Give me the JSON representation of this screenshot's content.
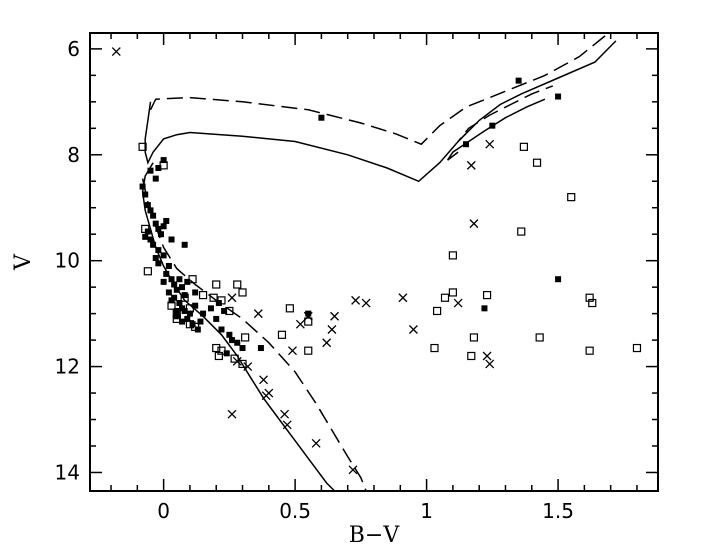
{
  "chart_data": {
    "type": "scatter",
    "title": "",
    "xlabel": "B−V",
    "ylabel": "V",
    "xlim": [
      -0.28,
      1.88
    ],
    "ylim": [
      14.35,
      5.7
    ],
    "y_inverted": true,
    "grid": false,
    "legend": "none",
    "x_ticks": [
      0,
      0.5,
      1,
      1.5
    ],
    "x_tick_labels": [
      "0",
      "0.5",
      "1",
      "1.5"
    ],
    "y_ticks": [
      6,
      8,
      10,
      12,
      14
    ],
    "y_tick_labels": [
      "6",
      "8",
      "10",
      "12",
      "14"
    ],
    "x_minor_step": 0.1,
    "y_minor_step": 0.5,
    "series": [
      {
        "marker": "filled-square",
        "points": [
          [
            -0.08,
            8.6
          ],
          [
            -0.07,
            8.75
          ],
          [
            -0.06,
            8.95
          ],
          [
            -0.05,
            9.05
          ],
          [
            -0.04,
            9.15
          ],
          [
            -0.03,
            9.3
          ],
          [
            -0.06,
            9.45
          ],
          [
            -0.05,
            9.6
          ],
          [
            -0.04,
            9.7
          ],
          [
            -0.07,
            9.55
          ],
          [
            -0.02,
            9.4
          ],
          [
            -0.01,
            9.5
          ],
          [
            0.0,
            9.35
          ],
          [
            0.01,
            9.25
          ],
          [
            -0.02,
            9.8
          ],
          [
            -0.03,
            9.95
          ],
          [
            -0.02,
            10.05
          ],
          [
            0.0,
            9.9
          ],
          [
            0.02,
            10.1
          ],
          [
            0.01,
            10.25
          ],
          [
            0.03,
            10.35
          ],
          [
            0.04,
            10.45
          ],
          [
            0.05,
            10.55
          ],
          [
            0.04,
            10.7
          ],
          [
            0.06,
            10.8
          ],
          [
            0.07,
            10.9
          ],
          [
            0.08,
            10.95
          ],
          [
            0.05,
            11.05
          ],
          [
            0.09,
            11.1
          ],
          [
            0.1,
            11.0
          ],
          [
            0.12,
            10.85
          ],
          [
            0.11,
            11.2
          ],
          [
            0.13,
            11.3
          ],
          [
            0.14,
            11.15
          ],
          [
            0.06,
            10.35
          ],
          [
            0.07,
            10.5
          ],
          [
            0.08,
            10.65
          ],
          [
            0.09,
            10.4
          ],
          [
            0.02,
            10.6
          ],
          [
            0.03,
            10.75
          ],
          [
            0.0,
            10.4
          ],
          [
            0.05,
            10.95
          ],
          [
            0.2,
            11.1
          ],
          [
            0.22,
            11.3
          ],
          [
            0.21,
            10.8
          ],
          [
            0.23,
            10.95
          ],
          [
            0.25,
            11.4
          ],
          [
            0.26,
            11.5
          ],
          [
            0.28,
            11.55
          ],
          [
            0.3,
            11.65
          ],
          [
            -0.05,
            8.3
          ],
          [
            -0.03,
            8.45
          ],
          [
            0.0,
            8.1
          ],
          [
            -0.02,
            8.25
          ],
          [
            0.08,
            9.7
          ],
          [
            0.03,
            9.6
          ],
          [
            0.37,
            11.65
          ],
          [
            0.55,
            11.0
          ],
          [
            0.6,
            7.3
          ],
          [
            1.15,
            7.8
          ],
          [
            1.25,
            7.45
          ],
          [
            1.35,
            6.6
          ],
          [
            1.5,
            6.9
          ],
          [
            1.5,
            10.35
          ],
          [
            1.22,
            10.9
          ],
          [
            0.24,
            11.75
          ],
          [
            0.12,
            10.6
          ],
          [
            0.18,
            10.9
          ],
          [
            0.15,
            11.0
          ],
          [
            0.07,
            11.15
          ]
        ]
      },
      {
        "marker": "open-square",
        "points": [
          [
            -0.08,
            7.85
          ],
          [
            -0.07,
            9.4
          ],
          [
            -0.06,
            10.2
          ],
          [
            0.03,
            10.85
          ],
          [
            0.05,
            11.0
          ],
          [
            0.1,
            10.9
          ],
          [
            0.1,
            11.2
          ],
          [
            0.12,
            11.25
          ],
          [
            0.11,
            10.35
          ],
          [
            0.15,
            10.65
          ],
          [
            0.2,
            10.45
          ],
          [
            0.19,
            10.7
          ],
          [
            0.22,
            10.75
          ],
          [
            0.25,
            10.95
          ],
          [
            0.28,
            10.45
          ],
          [
            0.3,
            10.6
          ],
          [
            0.31,
            11.45
          ],
          [
            0.2,
            11.65
          ],
          [
            0.21,
            11.8
          ],
          [
            0.22,
            11.7
          ],
          [
            0.27,
            11.85
          ],
          [
            0.3,
            11.95
          ],
          [
            0.45,
            11.4
          ],
          [
            0.48,
            10.9
          ],
          [
            0.55,
            11.15
          ],
          [
            0.55,
            11.7
          ],
          [
            1.03,
            11.65
          ],
          [
            1.04,
            10.95
          ],
          [
            1.07,
            10.7
          ],
          [
            1.1,
            10.6
          ],
          [
            1.1,
            9.9
          ],
          [
            1.18,
            11.45
          ],
          [
            1.17,
            11.8
          ],
          [
            1.23,
            10.65
          ],
          [
            1.37,
            7.85
          ],
          [
            1.42,
            8.15
          ],
          [
            1.55,
            8.8
          ],
          [
            1.36,
            9.45
          ],
          [
            1.43,
            11.45
          ],
          [
            1.62,
            10.7
          ],
          [
            1.63,
            10.8
          ],
          [
            1.62,
            11.7
          ],
          [
            1.8,
            11.65
          ],
          [
            0.0,
            8.2
          ],
          [
            0.05,
            11.1
          ],
          [
            0.08,
            10.7
          ]
        ]
      },
      {
        "marker": "cross",
        "points": [
          [
            -0.18,
            6.05
          ],
          [
            0.26,
            10.7
          ],
          [
            0.28,
            11.9
          ],
          [
            0.32,
            12.0
          ],
          [
            0.26,
            12.9
          ],
          [
            0.38,
            12.25
          ],
          [
            0.39,
            12.55
          ],
          [
            0.4,
            12.5
          ],
          [
            0.46,
            12.9
          ],
          [
            0.47,
            13.1
          ],
          [
            0.36,
            11.0
          ],
          [
            0.49,
            11.7
          ],
          [
            0.52,
            11.2
          ],
          [
            0.58,
            13.45
          ],
          [
            0.62,
            11.55
          ],
          [
            0.64,
            11.3
          ],
          [
            0.65,
            11.05
          ],
          [
            0.72,
            13.95
          ],
          [
            0.73,
            10.75
          ],
          [
            0.77,
            10.8
          ],
          [
            0.91,
            10.7
          ],
          [
            0.95,
            11.3
          ],
          [
            1.12,
            10.8
          ],
          [
            1.17,
            8.2
          ],
          [
            1.18,
            9.3
          ],
          [
            1.23,
            11.8
          ],
          [
            1.24,
            11.95
          ],
          [
            1.24,
            7.8
          ],
          [
            0.55,
            11.05
          ]
        ]
      }
    ],
    "curves": [
      {
        "style": "solid",
        "points": [
          [
            -0.05,
            7.0
          ],
          [
            -0.06,
            7.35
          ],
          [
            -0.07,
            7.7
          ],
          [
            -0.07,
            7.95
          ],
          [
            -0.06,
            8.15
          ],
          [
            -0.04,
            7.95
          ],
          [
            0.0,
            7.7
          ],
          [
            0.05,
            7.62
          ],
          [
            0.1,
            7.58
          ],
          [
            0.3,
            7.65
          ],
          [
            0.5,
            7.75
          ],
          [
            0.7,
            8.0
          ],
          [
            0.85,
            8.25
          ],
          [
            0.97,
            8.5
          ],
          [
            1.05,
            8.15
          ],
          [
            1.12,
            7.75
          ],
          [
            1.2,
            7.35
          ],
          [
            1.28,
            7.05
          ],
          [
            1.36,
            6.85
          ],
          [
            1.5,
            6.55
          ],
          [
            1.64,
            6.25
          ],
          [
            1.72,
            5.85
          ]
        ]
      },
      {
        "style": "solid",
        "points": [
          [
            -0.04,
            8.15
          ],
          [
            -0.07,
            8.4
          ],
          [
            -0.08,
            8.7
          ],
          [
            -0.07,
            9.05
          ],
          [
            -0.05,
            9.4
          ],
          [
            -0.03,
            9.75
          ],
          [
            0.0,
            10.1
          ],
          [
            0.04,
            10.45
          ],
          [
            0.08,
            10.75
          ],
          [
            0.15,
            11.05
          ],
          [
            0.22,
            11.4
          ],
          [
            0.28,
            11.8
          ],
          [
            0.33,
            12.2
          ],
          [
            0.38,
            12.6
          ],
          [
            0.44,
            13.0
          ],
          [
            0.5,
            13.4
          ],
          [
            0.56,
            13.8
          ],
          [
            0.62,
            14.2
          ],
          [
            0.65,
            14.35
          ]
        ]
      },
      {
        "style": "dashed",
        "points": [
          [
            -0.08,
            8.45
          ],
          [
            -0.06,
            8.9
          ],
          [
            -0.03,
            9.35
          ],
          [
            0.0,
            9.75
          ],
          [
            0.05,
            10.15
          ],
          [
            0.12,
            10.45
          ],
          [
            0.2,
            10.75
          ],
          [
            0.3,
            11.1
          ],
          [
            0.4,
            11.55
          ],
          [
            0.5,
            12.1
          ],
          [
            0.58,
            12.7
          ],
          [
            0.64,
            13.2
          ],
          [
            0.7,
            13.7
          ],
          [
            0.75,
            14.1
          ],
          [
            0.77,
            14.35
          ]
        ]
      },
      {
        "style": "dashed",
        "points": [
          [
            -0.05,
            7.15
          ],
          [
            -0.03,
            6.95
          ],
          [
            0.1,
            6.92
          ],
          [
            0.3,
            7.0
          ],
          [
            0.55,
            7.15
          ],
          [
            0.75,
            7.4
          ],
          [
            0.88,
            7.6
          ],
          [
            0.98,
            7.8
          ],
          [
            1.05,
            7.45
          ],
          [
            1.15,
            7.1
          ],
          [
            1.3,
            6.8
          ],
          [
            1.45,
            6.5
          ],
          [
            1.58,
            6.15
          ],
          [
            1.68,
            5.75
          ]
        ]
      },
      {
        "style": "solid",
        "points": [
          [
            1.12,
            7.95
          ],
          [
            1.08,
            8.1
          ],
          [
            1.1,
            7.95
          ],
          [
            1.16,
            7.75
          ],
          [
            1.22,
            7.55
          ],
          [
            1.3,
            7.3
          ],
          [
            1.38,
            7.1
          ],
          [
            1.45,
            6.95
          ]
        ]
      },
      {
        "style": "dashed",
        "points": [
          [
            1.15,
            7.6
          ],
          [
            1.12,
            7.75
          ],
          [
            1.16,
            7.5
          ],
          [
            1.24,
            7.25
          ],
          [
            1.32,
            7.05
          ],
          [
            1.4,
            6.85
          ],
          [
            1.48,
            6.7
          ]
        ]
      }
    ]
  }
}
